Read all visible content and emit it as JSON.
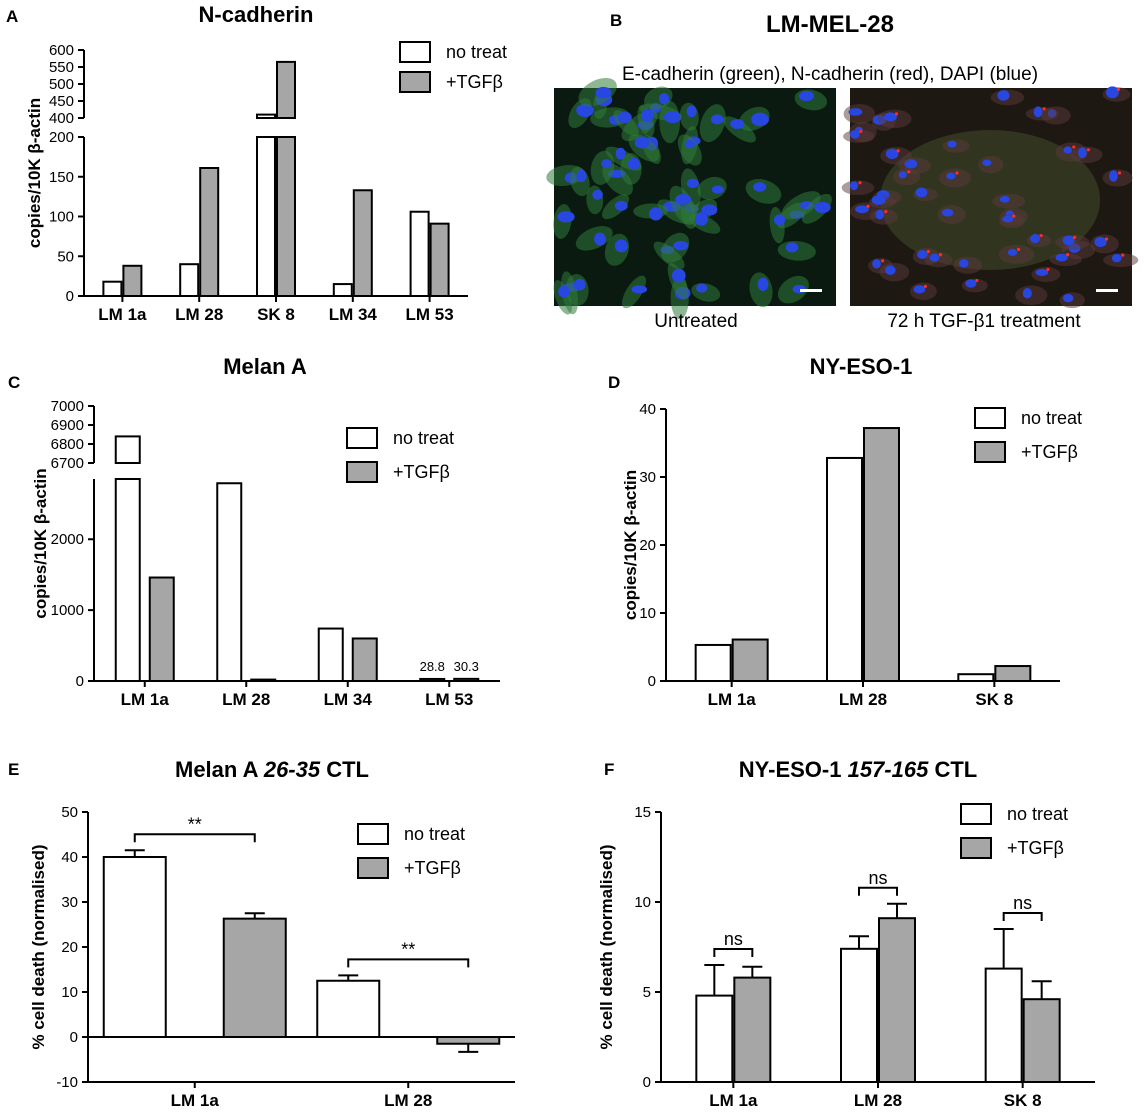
{
  "colors": {
    "no_treat": "#ffffff",
    "tgf": "#a6a6a6",
    "axis": "#000000"
  },
  "panels": {
    "A": {
      "letter": "A",
      "title": "N-cadherin"
    },
    "B": {
      "letter": "B",
      "title": "LM-MEL-28",
      "subtitle": "E-cadherin (green), N-cadherin (red), DAPI (blue)",
      "left_caption": "Untreated",
      "right_caption": "72 h TGF-β1 treatment"
    },
    "C": {
      "letter": "C",
      "title": "Melan A"
    },
    "D": {
      "letter": "D",
      "title": "NY-ESO-1"
    },
    "E": {
      "letter": "E",
      "title_main": "Melan A ",
      "title_italic": "26-35",
      "title_tail": " CTL"
    },
    "F": {
      "letter": "F",
      "title_main": "NY-ESO-1 ",
      "title_italic": "157-165",
      "title_tail": " CTL"
    }
  },
  "legend": {
    "no_treat": "no treat",
    "tgf": "+TGFβ"
  },
  "chart_data": [
    {
      "panel": "A",
      "type": "bar",
      "title": "N-cadherin",
      "ylabel": "copies/10K β-actin",
      "categories": [
        "LM 1a",
        "LM 28",
        "SK 8",
        "LM 34",
        "LM 53"
      ],
      "series": [
        {
          "name": "no treat",
          "values": [
            18,
            40,
            410,
            15,
            106
          ]
        },
        {
          "name": "+TGFβ",
          "values": [
            38,
            161,
            565,
            133,
            91
          ]
        }
      ],
      "y_axis_break": {
        "lower": [
          0,
          200
        ],
        "upper": [
          400,
          600
        ]
      },
      "yticks_lower": [
        "0",
        "50",
        "100",
        "150",
        "200"
      ],
      "yticks_upper": [
        "400",
        "450",
        "500",
        "550",
        "600"
      ],
      "legend": "top-right"
    },
    {
      "panel": "C",
      "type": "bar",
      "title": "Melan A",
      "ylabel": "copies/10K β-actin",
      "categories": [
        "LM 1a",
        "LM 28",
        "LM 34",
        "LM 53"
      ],
      "series": [
        {
          "name": "no treat",
          "values": [
            6840,
            2790,
            740,
            28.8
          ]
        },
        {
          "name": "+TGFβ",
          "values": [
            1460,
            20,
            600,
            30.3
          ]
        }
      ],
      "y_axis_break": {
        "lower": [
          0,
          2850
        ],
        "upper": [
          6700,
          7000
        ]
      },
      "yticks_lower": [
        "0",
        "1000",
        "2000"
      ],
      "yticks_upper": [
        "6700",
        "6800",
        "6900",
        "7000"
      ],
      "data_labels": [
        "28.8",
        "30.3"
      ],
      "legend": "top-right"
    },
    {
      "panel": "D",
      "type": "bar",
      "title": "NY-ESO-1",
      "ylabel": "copies/10K β-actin",
      "categories": [
        "LM 1a",
        "LM 28",
        "SK 8"
      ],
      "series": [
        {
          "name": "no treat",
          "values": [
            5.3,
            32.8,
            1.0
          ]
        },
        {
          "name": "+TGFβ",
          "values": [
            6.1,
            37.2,
            2.2
          ]
        }
      ],
      "ylim": [
        0,
        40
      ],
      "yticks": [
        "0",
        "10",
        "20",
        "30",
        "40"
      ],
      "legend": "top-right"
    },
    {
      "panel": "E",
      "type": "bar",
      "title": "Melan A 26-35 CTL",
      "ylabel": "% cell death (normalised)",
      "categories": [
        "LM 1a",
        "LM 28"
      ],
      "series": [
        {
          "name": "no treat",
          "values": [
            40.0,
            12.5
          ],
          "errors": [
            1.5,
            1.2
          ]
        },
        {
          "name": "+TGFβ",
          "values": [
            26.3,
            -1.5
          ],
          "errors": [
            1.2,
            1.8
          ]
        }
      ],
      "ylim": [
        -10,
        50
      ],
      "yticks": [
        "-10",
        "0",
        "10",
        "20",
        "30",
        "40",
        "50"
      ],
      "significance": [
        "**",
        "**"
      ],
      "legend": "top-right"
    },
    {
      "panel": "F",
      "type": "bar",
      "title": "NY-ESO-1 157-165 CTL",
      "ylabel": "% cell death (normalised)",
      "categories": [
        "LM 1a",
        "LM 28",
        "SK 8"
      ],
      "series": [
        {
          "name": "no treat",
          "values": [
            4.8,
            7.4,
            6.3
          ],
          "errors": [
            1.7,
            0.7,
            2.2
          ]
        },
        {
          "name": "+TGFβ",
          "values": [
            5.8,
            9.1,
            4.6
          ],
          "errors": [
            0.6,
            0.8,
            1.0
          ]
        }
      ],
      "ylim": [
        0,
        15
      ],
      "yticks": [
        "0",
        "5",
        "10",
        "15"
      ],
      "significance": [
        "ns",
        "ns",
        "ns"
      ],
      "legend": "top-right"
    }
  ]
}
